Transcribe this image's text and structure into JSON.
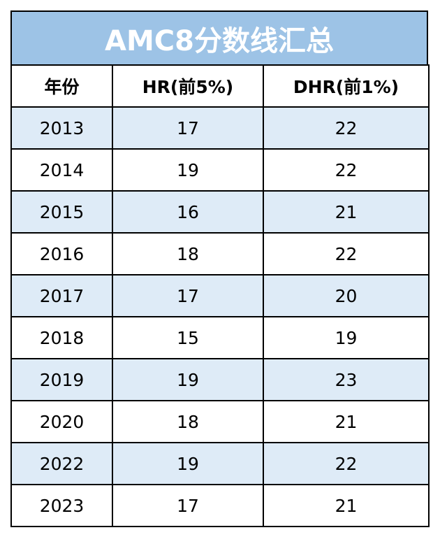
{
  "title": "AMC8分数线汇总",
  "columns": [
    "年份",
    "HR(前5%)",
    "DHR(前1%)"
  ],
  "rows": [
    [
      "2013",
      "17",
      "22"
    ],
    [
      "2014",
      "19",
      "22"
    ],
    [
      "2015",
      "16",
      "21"
    ],
    [
      "2016",
      "18",
      "22"
    ],
    [
      "2017",
      "17",
      "20"
    ],
    [
      "2018",
      "15",
      "19"
    ],
    [
      "2019",
      "19",
      "23"
    ],
    [
      "2020",
      "18",
      "21"
    ],
    [
      "2022",
      "19",
      "22"
    ],
    [
      "2023",
      "17",
      "21"
    ]
  ],
  "colors": {
    "title_background": "#9dc3e6",
    "title_text": "#ffffff",
    "row_shade": "#deebf7",
    "border": "#000000"
  }
}
